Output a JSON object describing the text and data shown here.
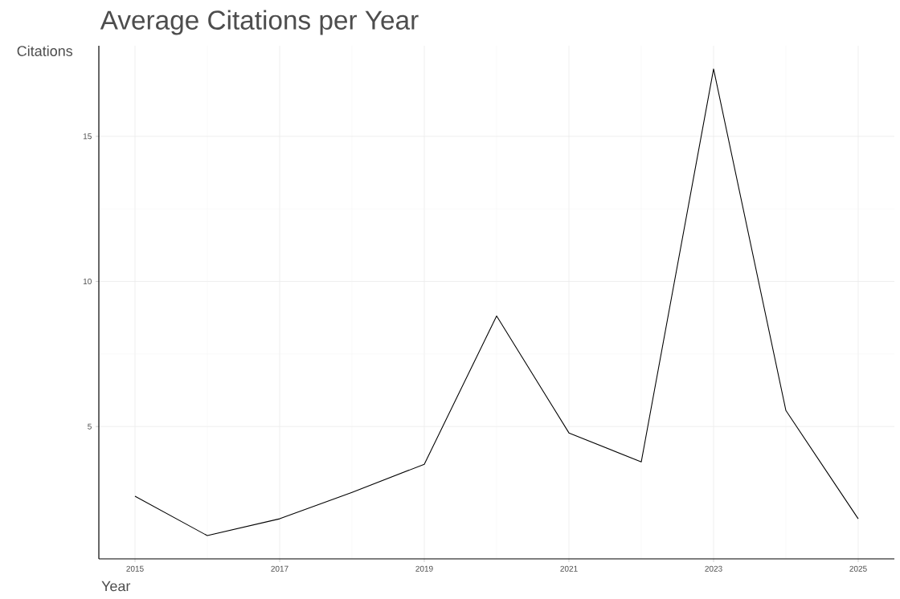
{
  "chart_data": {
    "type": "line",
    "title": "Average Citations per Year",
    "xlabel": "Year",
    "ylabel": "Citations",
    "x": [
      2015,
      2016,
      2017,
      2018,
      2019,
      2020,
      2021,
      2022,
      2023,
      2024,
      2025
    ],
    "values": [
      2.6,
      1.24,
      1.82,
      2.73,
      3.7,
      8.81,
      4.78,
      3.78,
      17.32,
      5.55,
      1.82
    ],
    "color": "#000000",
    "xlim": [
      2014.5,
      2025.5
    ],
    "xticks": [
      2015,
      2017,
      2019,
      2021,
      2023,
      2025
    ],
    "ylim": [
      0.44,
      18.12
    ],
    "yticks": [
      5,
      10,
      15
    ],
    "grid": true
  }
}
